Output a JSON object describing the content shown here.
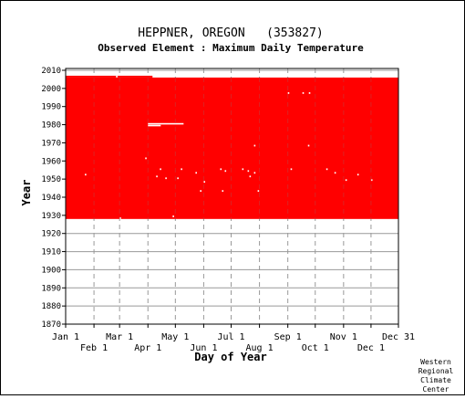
{
  "header": {
    "station_title": "HEPPNER, OREGON   (353827)",
    "subtitle": "Observed Element : Maximum Daily Temperature"
  },
  "credit": {
    "line1": "Western",
    "line2": "Regional",
    "line3": "Climate",
    "line4": "Center"
  },
  "colors": {
    "data": "#ff0000",
    "background": "#ffffff",
    "grid": "#999999",
    "axis": "#000000"
  },
  "chart_data": {
    "type": "heatmap",
    "title": "HEPPNER, OREGON   (353827)",
    "subtitle": "Observed Element : Maximum Daily Temperature",
    "xlabel": "Day of Year",
    "ylabel": "Year",
    "xlim": [
      1,
      365
    ],
    "ylim": [
      1870,
      2011
    ],
    "y_ticks": [
      2010,
      2000,
      1990,
      1980,
      1970,
      1960,
      1950,
      1940,
      1930,
      1920,
      1910,
      1900,
      1890,
      1880,
      1870
    ],
    "x_ticks_upper": [
      {
        "label": "Jan 1",
        "day": 1
      },
      {
        "label": "Mar 1",
        "day": 60
      },
      {
        "label": "May 1",
        "day": 121
      },
      {
        "label": "Jul 1",
        "day": 182
      },
      {
        "label": "Sep 1",
        "day": 244
      },
      {
        "label": "Nov 1",
        "day": 305
      },
      {
        "label": "Dec 31",
        "day": 365
      }
    ],
    "x_ticks_lower": [
      {
        "label": "Feb 1",
        "day": 32
      },
      {
        "label": "Apr 1",
        "day": 91
      },
      {
        "label": "Jun 1",
        "day": 152
      },
      {
        "label": "Aug 1",
        "day": 213
      },
      {
        "label": "Oct 1",
        "day": 274
      },
      {
        "label": "Dec 1",
        "day": 335
      }
    ],
    "grid": true,
    "coverage": {
      "start_year": 1928,
      "end_year": 2005,
      "partial_last_year": 2006,
      "partial_last_year_through_day": 96
    },
    "missing_segments": [
      {
        "year": 1980,
        "day_start": 91,
        "day_end": 130
      },
      {
        "year": 1979,
        "day_start": 91,
        "day_end": 105
      },
      {
        "year": 2006,
        "day_start": 56,
        "day_end": 58
      }
    ],
    "missing_days": [
      {
        "year": 1928,
        "day": 60
      },
      {
        "year": 1997,
        "day": 244
      },
      {
        "year": 1997,
        "day": 260
      },
      {
        "year": 1997,
        "day": 267
      },
      {
        "year": 1968,
        "day": 207
      },
      {
        "year": 1968,
        "day": 266
      },
      {
        "year": 1961,
        "day": 88
      },
      {
        "year": 1955,
        "day": 104
      },
      {
        "year": 1955,
        "day": 127
      },
      {
        "year": 1955,
        "day": 170
      },
      {
        "year": 1955,
        "day": 194
      },
      {
        "year": 1955,
        "day": 247
      },
      {
        "year": 1955,
        "day": 286
      },
      {
        "year": 1954,
        "day": 175
      },
      {
        "year": 1954,
        "day": 200
      },
      {
        "year": 1953,
        "day": 143
      },
      {
        "year": 1953,
        "day": 207
      },
      {
        "year": 1953,
        "day": 295
      },
      {
        "year": 1952,
        "day": 22
      },
      {
        "year": 1952,
        "day": 320
      },
      {
        "year": 1951,
        "day": 100
      },
      {
        "year": 1951,
        "day": 202
      },
      {
        "year": 1950,
        "day": 110
      },
      {
        "year": 1950,
        "day": 123
      },
      {
        "year": 1949,
        "day": 307
      },
      {
        "year": 1949,
        "day": 335
      },
      {
        "year": 1948,
        "day": 152
      },
      {
        "year": 1943,
        "day": 148
      },
      {
        "year": 1943,
        "day": 172
      },
      {
        "year": 1943,
        "day": 211
      },
      {
        "year": 1929,
        "day": 118
      }
    ]
  }
}
